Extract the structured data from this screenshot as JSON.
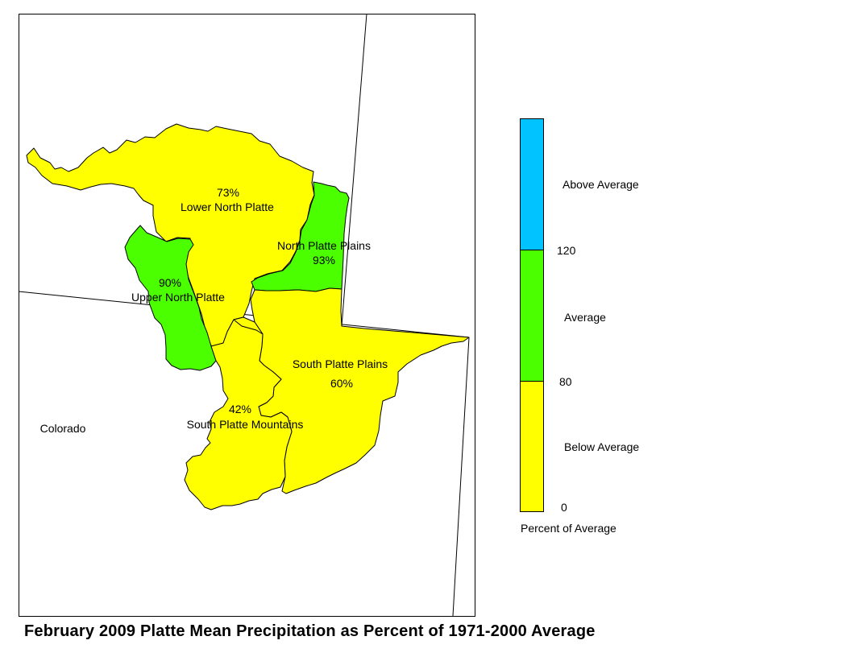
{
  "title": "February 2009 Platte Mean Precipitation as Percent of 1971-2000 Average",
  "state_label": "Colorado",
  "colors": {
    "above": "#00C3FF",
    "average": "#4CFF00",
    "below": "#FFFF00",
    "outline": "#000000"
  },
  "basins": [
    {
      "name": "Lower North Platte",
      "percent": "73%",
      "category": "below"
    },
    {
      "name": "North Platte Plains",
      "percent": "93%",
      "category": "average"
    },
    {
      "name": "Upper North Platte",
      "percent": "90%",
      "category": "average"
    },
    {
      "name": "South Platte Plains",
      "percent": "60%",
      "category": "below"
    },
    {
      "name": "South Platte Mountains",
      "percent": "42%",
      "category": "below"
    }
  ],
  "legend": {
    "categories": [
      {
        "label": "Above Average",
        "color": "#00C3FF"
      },
      {
        "label": "Average",
        "color": "#4CFF00"
      },
      {
        "label": "Below Average",
        "color": "#FFFF00"
      }
    ],
    "breaks": [
      "120",
      "80",
      "0"
    ],
    "caption": "Percent of Average"
  }
}
